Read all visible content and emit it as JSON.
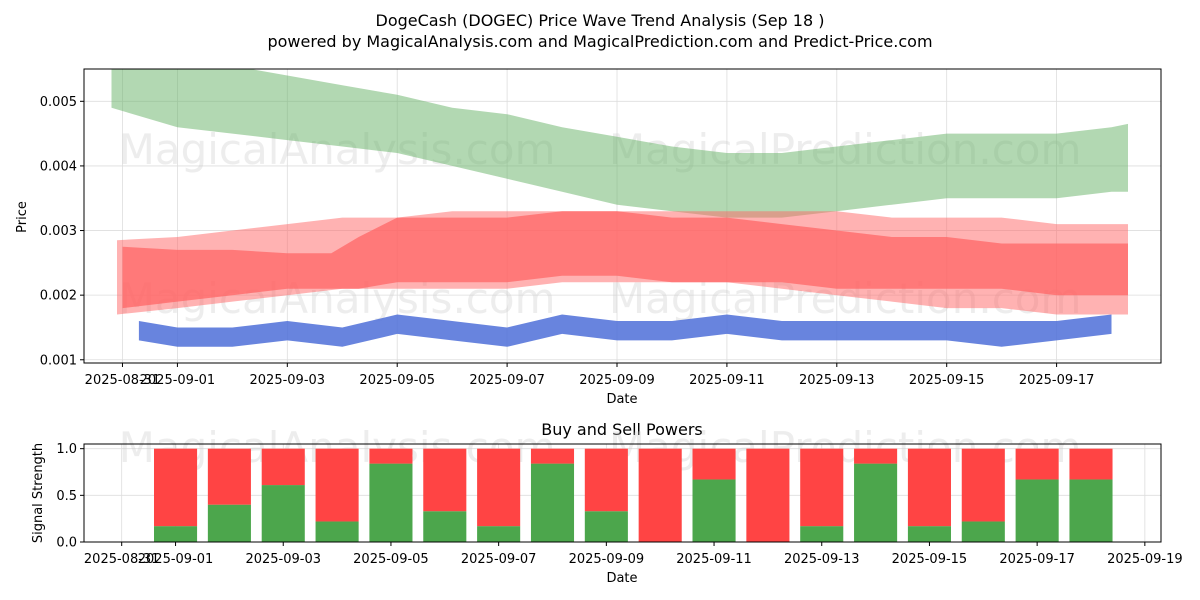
{
  "title_line1": "DogeCash (DOGEC) Price Wave Trend Analysis (Sep 18 )",
  "title_line2": "powered by MagicalAnalysis.com and MagicalPrediction.com and Predict-Price.com",
  "watermark": "MagicalAnalysis.com    MagicalPrediction.com",
  "colors": {
    "green_band": "#66b266",
    "red_band": "#ff6666",
    "blue_band": "#4d6ed8",
    "buy": "#4ca64c",
    "sell": "#ff4444",
    "grid": "#dddddd"
  },
  "chart_data": [
    {
      "type": "area",
      "title": "",
      "xlabel": "Date",
      "ylabel": "Price",
      "ylim": [
        0.00095,
        0.0055
      ],
      "x_range_days": [
        -0.7,
        18.9
      ],
      "x_origin": "2025-08-31",
      "yticks": [
        0.001,
        0.002,
        0.003,
        0.004,
        0.005
      ],
      "ytick_labels": [
        "0.001",
        "0.002",
        "0.003",
        "0.004",
        "0.005"
      ],
      "xticks": [
        0,
        1,
        3,
        5,
        7,
        9,
        11,
        13,
        15,
        17
      ],
      "xtick_labels": [
        "2025-08-31",
        "2025-09-01",
        "2025-09-03",
        "2025-09-05",
        "2025-09-07",
        "2025-09-09",
        "2025-09-11",
        "2025-09-13",
        "2025-09-15",
        "2025-09-17"
      ],
      "series": [
        {
          "name": "Long wave (green band)",
          "x": [
            -0.2,
            1,
            2,
            3,
            4,
            5,
            6,
            7,
            8,
            9,
            10,
            11,
            12,
            13,
            14,
            15,
            16,
            17,
            18,
            18.3
          ],
          "upper": [
            0.00555,
            0.0056,
            0.00555,
            0.0054,
            0.00525,
            0.0051,
            0.0049,
            0.0048,
            0.0046,
            0.00445,
            0.0043,
            0.0042,
            0.0042,
            0.0043,
            0.0044,
            0.0045,
            0.0045,
            0.0045,
            0.0046,
            0.00465
          ],
          "lower": [
            0.0049,
            0.0046,
            0.0045,
            0.0044,
            0.0043,
            0.0042,
            0.004,
            0.0038,
            0.0036,
            0.0034,
            0.0033,
            0.0032,
            0.0032,
            0.0033,
            0.0034,
            0.0035,
            0.0035,
            0.0035,
            0.0036,
            0.0036
          ]
        },
        {
          "name": "Medium wave outer (light red band)",
          "x": [
            -0.1,
            1,
            2,
            3,
            4,
            5,
            6,
            7,
            8,
            9,
            10,
            11,
            12,
            13,
            14,
            15,
            16,
            17,
            18.3
          ],
          "upper": [
            0.00285,
            0.0029,
            0.003,
            0.0031,
            0.0032,
            0.0032,
            0.0033,
            0.0033,
            0.0033,
            0.0033,
            0.0033,
            0.0033,
            0.0033,
            0.0033,
            0.0032,
            0.0032,
            0.0032,
            0.0031,
            0.0031
          ],
          "lower": [
            0.0017,
            0.0018,
            0.0019,
            0.002,
            0.0021,
            0.0021,
            0.0021,
            0.0021,
            0.0022,
            0.0022,
            0.0022,
            0.0022,
            0.0021,
            0.002,
            0.0019,
            0.0018,
            0.0018,
            0.0017,
            0.0017
          ]
        },
        {
          "name": "Medium wave inner (red band)",
          "x": [
            0,
            1,
            2,
            3,
            3.8,
            4.3,
            5,
            6,
            7,
            8,
            9,
            10,
            11,
            12,
            13,
            14,
            15,
            16,
            17,
            18.3
          ],
          "upper": [
            0.00275,
            0.0027,
            0.0027,
            0.00265,
            0.00265,
            0.0029,
            0.0032,
            0.0032,
            0.0032,
            0.0033,
            0.0033,
            0.0032,
            0.0032,
            0.0031,
            0.003,
            0.0029,
            0.0029,
            0.0028,
            0.0028,
            0.0028
          ],
          "lower": [
            0.0018,
            0.0019,
            0.002,
            0.0021,
            0.0021,
            0.0021,
            0.0022,
            0.0022,
            0.0022,
            0.0023,
            0.0023,
            0.0022,
            0.0022,
            0.0022,
            0.0021,
            0.0021,
            0.0021,
            0.0021,
            0.002,
            0.002
          ]
        },
        {
          "name": "Short wave (blue band)",
          "x": [
            0.3,
            1,
            2,
            3,
            4,
            5,
            6,
            7,
            8,
            9,
            10,
            11,
            12,
            13,
            14,
            15,
            16,
            17,
            18
          ],
          "upper": [
            0.0016,
            0.0015,
            0.0015,
            0.0016,
            0.0015,
            0.0017,
            0.0016,
            0.0015,
            0.0017,
            0.0016,
            0.0016,
            0.0017,
            0.0016,
            0.0016,
            0.0016,
            0.0016,
            0.0016,
            0.0016,
            0.0017
          ],
          "lower": [
            0.0013,
            0.0012,
            0.0012,
            0.0013,
            0.0012,
            0.0014,
            0.0013,
            0.0012,
            0.0014,
            0.0013,
            0.0013,
            0.0014,
            0.0013,
            0.0013,
            0.0013,
            0.0013,
            0.0012,
            0.0013,
            0.0014
          ]
        }
      ]
    },
    {
      "type": "bar",
      "title": "Buy and Sell Powers",
      "xlabel": "Date",
      "ylabel": "Signal Strength",
      "ylim": [
        0,
        1.05
      ],
      "x_range_days": [
        -0.7,
        19.3
      ],
      "yticks": [
        0.0,
        0.5,
        1.0
      ],
      "ytick_labels": [
        "0.0",
        "0.5",
        "1.0"
      ],
      "xticks": [
        0,
        1,
        3,
        5,
        7,
        9,
        11,
        13,
        15,
        17,
        19
      ],
      "xtick_labels": [
        "2025-08-31",
        "2025-09-01",
        "2025-09-03",
        "2025-09-05",
        "2025-09-07",
        "2025-09-09",
        "2025-09-11",
        "2025-09-13",
        "2025-09-15",
        "2025-09-17",
        "2025-09-19"
      ],
      "categories": [
        "2025-09-01",
        "2025-09-02",
        "2025-09-03",
        "2025-09-04",
        "2025-09-05",
        "2025-09-06",
        "2025-09-07",
        "2025-09-08",
        "2025-09-09",
        "2025-09-10",
        "2025-09-11",
        "2025-09-12",
        "2025-09-13",
        "2025-09-14",
        "2025-09-15",
        "2025-09-16",
        "2025-09-17",
        "2025-09-18"
      ],
      "series": [
        {
          "name": "Buy",
          "values": [
            0.17,
            0.4,
            0.61,
            0.22,
            0.84,
            0.33,
            0.17,
            0.84,
            0.33,
            0.0,
            0.67,
            0.0,
            0.17,
            0.84,
            0.17,
            0.22,
            0.67,
            0.67
          ]
        },
        {
          "name": "Sell",
          "values": [
            0.83,
            0.6,
            0.39,
            0.78,
            0.16,
            0.67,
            0.83,
            0.16,
            0.67,
            1.0,
            0.33,
            1.0,
            0.83,
            0.16,
            0.83,
            0.78,
            0.33,
            0.33
          ]
        }
      ]
    }
  ]
}
